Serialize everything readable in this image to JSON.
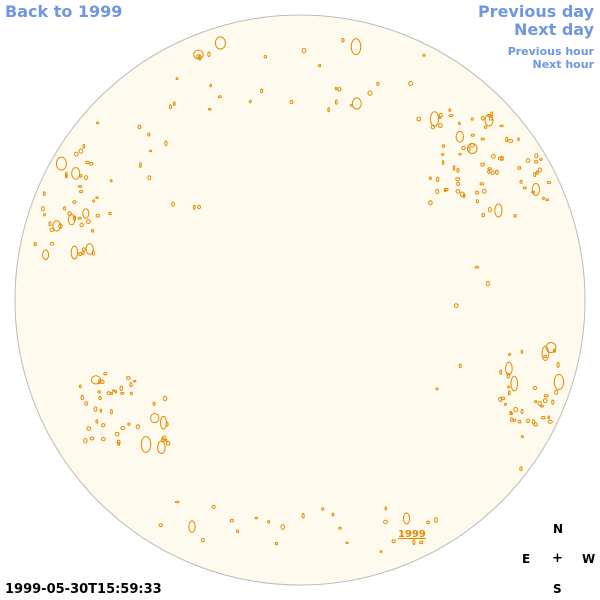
{
  "nav": {
    "back": "Back to 1999",
    "previous_day": "Previous day",
    "next_day": "Next day",
    "previous_hour": "Previous hour",
    "next_hour": "Next hour"
  },
  "timestamp": "1999-05-30T15:59:33",
  "compass": {
    "north": "N",
    "east": "E",
    "center": "+",
    "west": "W",
    "south": "S"
  },
  "map": {
    "year_label": "1999",
    "disk_fill": "#fffaee",
    "disk_stroke": "#bbbbbb",
    "contour_color": "#e58a00"
  },
  "colors": {
    "link": "#6f96e0",
    "text": "#000000"
  }
}
